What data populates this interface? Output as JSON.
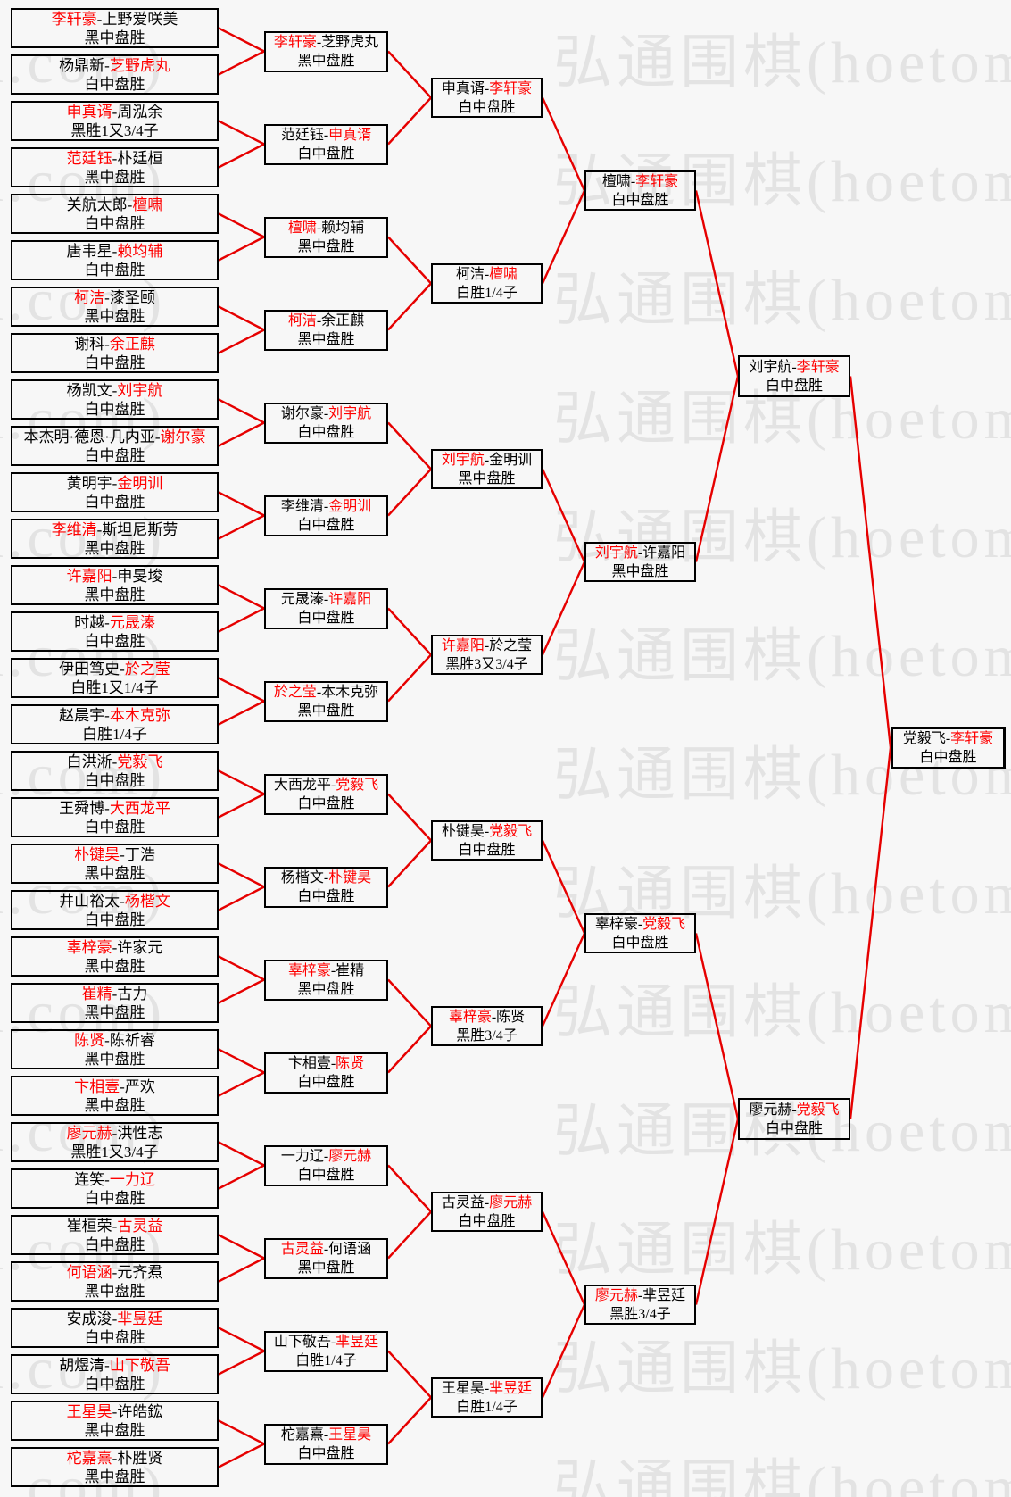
{
  "watermark": {
    "text": "弘通围棋(hoetom.com)",
    "color": "#e3e3e3"
  },
  "colors": {
    "winner": "#ff0000",
    "connector": "#e60000",
    "border": "#000000",
    "text": "#000000",
    "background": "#f7f7f7"
  },
  "bracket": {
    "rounds": [
      {
        "id": "round-of-32",
        "matches": [
          {
            "left": "李轩豪",
            "right": "上野爱咲美",
            "winner": "left",
            "result": "黑中盘胜"
          },
          {
            "left": "杨鼎新",
            "right": "芝野虎丸",
            "winner": "right",
            "result": "白中盘胜"
          },
          {
            "left": "申真谞",
            "right": "周泓余",
            "winner": "left",
            "result": "黑胜1又3/4子"
          },
          {
            "left": "范廷钰",
            "right": "朴廷桓",
            "winner": "left",
            "result": "黑中盘胜"
          },
          {
            "left": "关航太郎",
            "right": "檀啸",
            "winner": "right",
            "result": "白中盘胜"
          },
          {
            "left": "唐韦星",
            "right": "赖均辅",
            "winner": "right",
            "result": "白中盘胜"
          },
          {
            "left": "柯洁",
            "right": "漆圣颐",
            "winner": "left",
            "result": "黑中盘胜"
          },
          {
            "left": "谢科",
            "right": "余正麒",
            "winner": "right",
            "result": "白中盘胜"
          },
          {
            "left": "杨凯文",
            "right": "刘宇航",
            "winner": "right",
            "result": "白中盘胜"
          },
          {
            "left": "本杰明·德恩·几内亚",
            "right": "谢尔豪",
            "winner": "right",
            "result": "白中盘胜"
          },
          {
            "left": "黄明宇",
            "right": "金明训",
            "winner": "right",
            "result": "白中盘胜"
          },
          {
            "left": "李维清",
            "right": "斯坦尼斯劳",
            "winner": "left",
            "result": "黑中盘胜"
          },
          {
            "left": "许嘉阳",
            "right": "申旻埈",
            "winner": "left",
            "result": "黑中盘胜"
          },
          {
            "left": "时越",
            "right": "元晟溱",
            "winner": "right",
            "result": "白中盘胜"
          },
          {
            "left": "伊田笃史",
            "right": "於之莹",
            "winner": "right",
            "result": "白胜1又1/4子"
          },
          {
            "left": "赵晨宇",
            "right": "本木克弥",
            "winner": "right",
            "result": "白胜1/4子"
          },
          {
            "left": "白洪淅",
            "right": "党毅飞",
            "winner": "right",
            "result": "白中盘胜"
          },
          {
            "left": "王舜博",
            "right": "大西龙平",
            "winner": "right",
            "result": "白中盘胜"
          },
          {
            "left": "朴键昊",
            "right": "丁浩",
            "winner": "left",
            "result": "黑中盘胜"
          },
          {
            "left": "井山裕太",
            "right": "杨楷文",
            "winner": "right",
            "result": "白中盘胜"
          },
          {
            "left": "辜梓豪",
            "right": "许家元",
            "winner": "left",
            "result": "黑中盘胜"
          },
          {
            "left": "崔精",
            "right": "古力",
            "winner": "left",
            "result": "黑中盘胜"
          },
          {
            "left": "陈贤",
            "right": "陈祈睿",
            "winner": "left",
            "result": "黑中盘胜"
          },
          {
            "left": "卞相壹",
            "right": "严欢",
            "winner": "left",
            "result": "黑中盘胜"
          },
          {
            "left": "廖元赫",
            "right": "洪性志",
            "winner": "left",
            "result": "黑胜1又3/4子"
          },
          {
            "left": "连笑",
            "right": "一力辽",
            "winner": "right",
            "result": "白中盘胜"
          },
          {
            "left": "崔桓荣",
            "right": "古灵益",
            "winner": "right",
            "result": "白中盘胜"
          },
          {
            "left": "何语涵",
            "right": "元齐焄",
            "winner": "left",
            "result": "黑中盘胜"
          },
          {
            "left": "安成浚",
            "right": "芈昱廷",
            "winner": "right",
            "result": "白中盘胜"
          },
          {
            "left": "胡煜清",
            "right": "山下敬吾",
            "winner": "right",
            "result": "白中盘胜"
          },
          {
            "left": "王星昊",
            "right": "许皓鋐",
            "winner": "left",
            "result": "黑中盘胜"
          },
          {
            "left": "柁嘉熹",
            "right": "朴胜贤",
            "winner": "left",
            "result": "黑中盘胜"
          }
        ]
      },
      {
        "id": "round-of-16",
        "matches": [
          {
            "left": "李轩豪",
            "right": "芝野虎丸",
            "winner": "left",
            "result": "黑中盘胜"
          },
          {
            "left": "范廷钰",
            "right": "申真谞",
            "winner": "right",
            "result": "白中盘胜"
          },
          {
            "left": "檀啸",
            "right": "赖均辅",
            "winner": "left",
            "result": "黑中盘胜"
          },
          {
            "left": "柯洁",
            "right": "余正麒",
            "winner": "left",
            "result": "黑中盘胜"
          },
          {
            "left": "谢尔豪",
            "right": "刘宇航",
            "winner": "right",
            "result": "白中盘胜"
          },
          {
            "left": "李维清",
            "right": "金明训",
            "winner": "right",
            "result": "白中盘胜"
          },
          {
            "left": "元晟溱",
            "right": "许嘉阳",
            "winner": "right",
            "result": "白中盘胜"
          },
          {
            "left": "於之莹",
            "right": "本木克弥",
            "winner": "left",
            "result": "黑中盘胜"
          },
          {
            "left": "大西龙平",
            "right": "党毅飞",
            "winner": "right",
            "result": "白中盘胜"
          },
          {
            "left": "杨楷文",
            "right": "朴键昊",
            "winner": "right",
            "result": "白中盘胜"
          },
          {
            "left": "辜梓豪",
            "right": "崔精",
            "winner": "left",
            "result": "黑中盘胜"
          },
          {
            "left": "卞相壹",
            "right": "陈贤",
            "winner": "right",
            "result": "白中盘胜"
          },
          {
            "left": "一力辽",
            "right": "廖元赫",
            "winner": "right",
            "result": "白中盘胜"
          },
          {
            "left": "古灵益",
            "right": "何语涵",
            "winner": "left",
            "result": "黑中盘胜"
          },
          {
            "left": "山下敬吾",
            "right": "芈昱廷",
            "winner": "right",
            "result": "白胜1/4子"
          },
          {
            "left": "柁嘉熹",
            "right": "王星昊",
            "winner": "right",
            "result": "白中盘胜"
          }
        ]
      },
      {
        "id": "round-of-8",
        "matches": [
          {
            "left": "申真谞",
            "right": "李轩豪",
            "winner": "right",
            "result": "白中盘胜"
          },
          {
            "left": "柯洁",
            "right": "檀啸",
            "winner": "right",
            "result": "白胜1/4子"
          },
          {
            "left": "刘宇航",
            "right": "金明训",
            "winner": "left",
            "result": "黑中盘胜"
          },
          {
            "left": "许嘉阳",
            "right": "於之莹",
            "winner": "left",
            "result": "黑胜3又3/4子"
          },
          {
            "left": "朴键昊",
            "right": "党毅飞",
            "winner": "right",
            "result": "白中盘胜"
          },
          {
            "left": "辜梓豪",
            "right": "陈贤",
            "winner": "left",
            "result": "黑胜3/4子"
          },
          {
            "left": "古灵益",
            "right": "廖元赫",
            "winner": "right",
            "result": "白中盘胜"
          },
          {
            "left": "王星昊",
            "right": "芈昱廷",
            "winner": "right",
            "result": "白胜1/4子"
          }
        ]
      },
      {
        "id": "quarterfinal",
        "matches": [
          {
            "left": "檀啸",
            "right": "李轩豪",
            "winner": "right",
            "result": "白中盘胜"
          },
          {
            "left": "刘宇航",
            "right": "许嘉阳",
            "winner": "left",
            "result": "黑中盘胜"
          },
          {
            "left": "辜梓豪",
            "right": "党毅飞",
            "winner": "right",
            "result": "白中盘胜"
          },
          {
            "left": "廖元赫",
            "right": "芈昱廷",
            "winner": "left",
            "result": "黑胜3/4子"
          }
        ]
      },
      {
        "id": "semifinal",
        "matches": [
          {
            "left": "刘宇航",
            "right": "李轩豪",
            "winner": "right",
            "result": "白中盘胜"
          },
          {
            "left": "廖元赫",
            "right": "党毅飞",
            "winner": "right",
            "result": "白中盘胜"
          }
        ]
      },
      {
        "id": "final",
        "matches": [
          {
            "left": "党毅飞",
            "right": "李轩豪",
            "winner": "right",
            "result": "白中盘胜"
          }
        ]
      }
    ]
  }
}
